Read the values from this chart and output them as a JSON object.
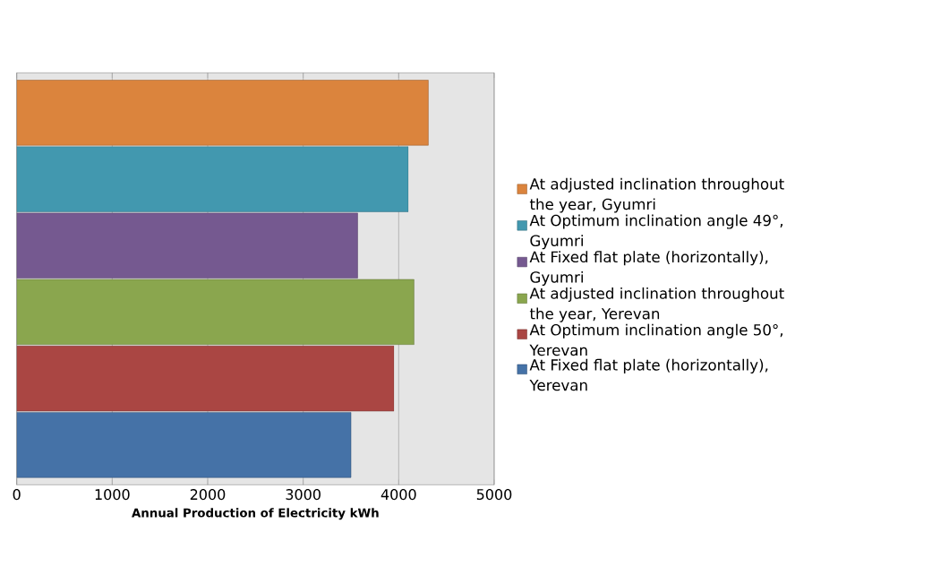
{
  "chart_data": {
    "type": "bar",
    "orientation": "horizontal",
    "xlabel": "Annual Production of Electricity kWh",
    "categories": [
      null
    ],
    "series": [
      {
        "name": "At adjusted inclination throughout the year, Gyumri",
        "color": "#db843d",
        "values": [
          4310
        ]
      },
      {
        "name": "At Optimum inclination angle 49°, Gyumri",
        "color": "#4298af",
        "values": [
          4100
        ]
      },
      {
        "name": "At Fixed flat plate (horizontally), Gyumri",
        "color": "#755990",
        "values": [
          3570
        ]
      },
      {
        "name": "At adjusted inclination throughout the year, Yerevan",
        "color": "#8aa64e",
        "values": [
          4160
        ]
      },
      {
        "name": "At Optimum inclination angle 50°, Yerevan",
        "color": "#aa4643",
        "values": [
          3950
        ]
      },
      {
        "name": "At Fixed flat plate (horizontally), Yerevan",
        "color": "#4572a7",
        "values": [
          3500
        ]
      }
    ],
    "xlim": [
      0,
      5000
    ],
    "xticks": [
      0,
      1000,
      2000,
      3000,
      4000,
      5000
    ],
    "grid": "x",
    "legend": "right"
  }
}
